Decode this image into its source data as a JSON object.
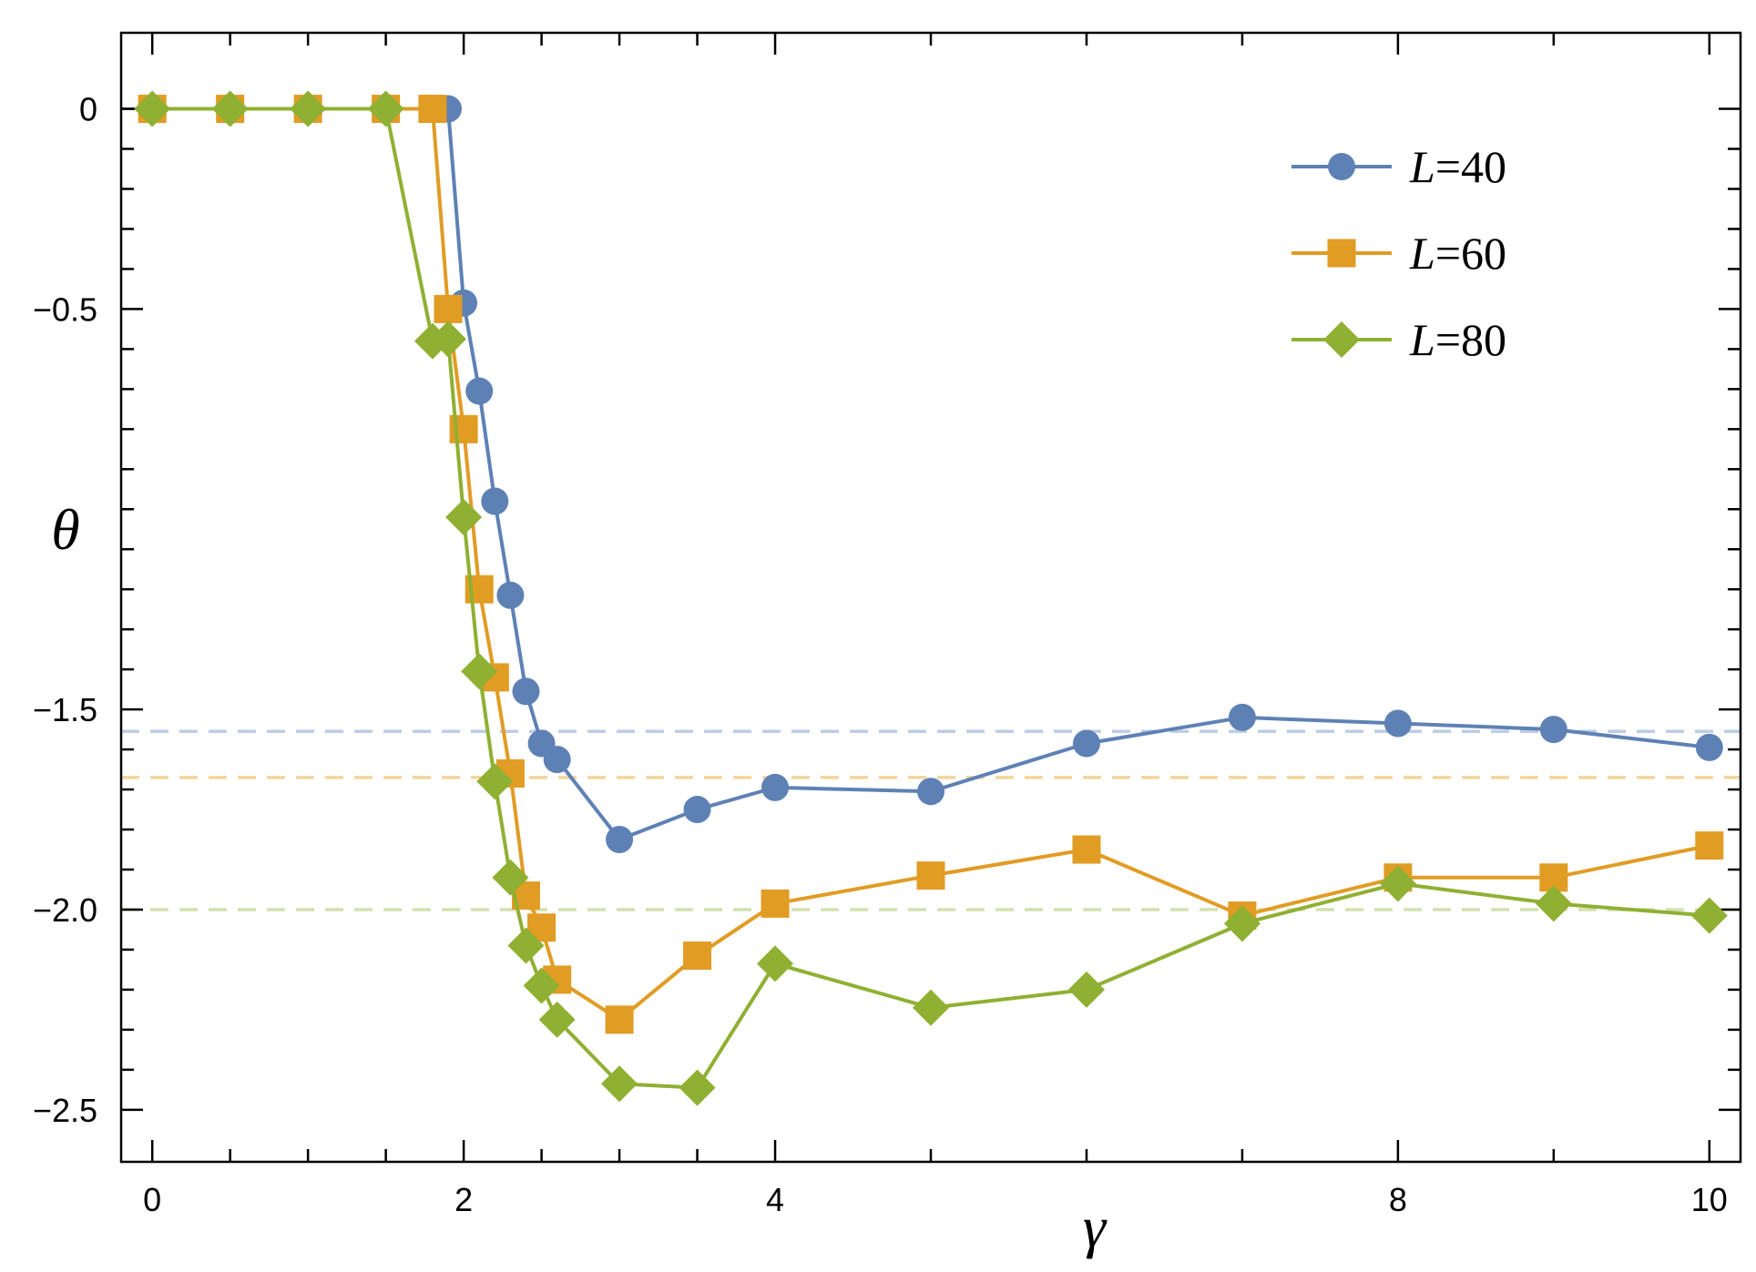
{
  "chart_data": {
    "type": "line",
    "title": "",
    "xlabel": "γ",
    "ylabel": "θ",
    "xlim": [
      -0.2,
      10.2
    ],
    "ylim": [
      -2.63,
      0.19
    ],
    "x_ticks": [
      {
        "value": 0,
        "label": "0"
      },
      {
        "value": 2,
        "label": "2"
      },
      {
        "value": 4,
        "label": "4"
      },
      {
        "value": 8,
        "label": "8"
      },
      {
        "value": 10,
        "label": "10"
      }
    ],
    "x_minor_ticks": [
      0.5,
      1,
      1.5,
      2.5,
      3,
      3.5,
      5,
      6,
      7,
      9
    ],
    "y_ticks": [
      {
        "value": 0,
        "label": "0"
      },
      {
        "value": -0.5,
        "label": "-0.5"
      },
      {
        "value": -1.5,
        "label": "-1.5"
      },
      {
        "value": -2.0,
        "label": "-2.0"
      },
      {
        "value": -2.5,
        "label": "-2.5"
      }
    ],
    "y_minor_ticks": [
      -0.1,
      -0.2,
      -0.3,
      -0.4,
      -0.6,
      -0.7,
      -0.8,
      -0.9,
      -1.0,
      -1.1,
      -1.2,
      -1.3,
      -1.4,
      -1.6,
      -1.7,
      -1.8,
      -1.9,
      -2.1,
      -2.2,
      -2.3,
      -2.4
    ],
    "legend_position": "top-right",
    "series": [
      {
        "name": "L=40",
        "legend_var": "L",
        "legend_value": "=40",
        "color": "#5e81b5",
        "marker": "circle",
        "reference_line": -1.555,
        "reference_color": "#bccde6",
        "x": [
          0,
          0.5,
          1,
          1.5,
          1.9,
          2.0,
          2.1,
          2.2,
          2.3,
          2.4,
          2.5,
          2.6,
          3,
          3.5,
          4,
          5,
          6,
          7,
          8,
          9,
          10
        ],
        "y": [
          0,
          0,
          0,
          0,
          0,
          -0.485,
          -0.705,
          -0.98,
          -1.215,
          -1.455,
          -1.585,
          -1.625,
          -1.825,
          -1.75,
          -1.695,
          -1.705,
          -1.585,
          -1.52,
          -1.535,
          -1.55,
          -1.595
        ]
      },
      {
        "name": "L=60",
        "legend_var": "L",
        "legend_value": "=60",
        "color": "#e19c24",
        "marker": "square",
        "reference_line": -1.67,
        "reference_color": "#f2d59e",
        "x": [
          0,
          0.5,
          1,
          1.5,
          1.8,
          1.9,
          2.0,
          2.1,
          2.2,
          2.3,
          2.4,
          2.5,
          2.6,
          3,
          3.5,
          4,
          5,
          6,
          7,
          8,
          9,
          10
        ],
        "y": [
          0,
          0,
          0,
          0,
          0,
          -0.5,
          -0.8,
          -1.2,
          -1.42,
          -1.66,
          -1.965,
          -2.045,
          -2.175,
          -2.275,
          -2.115,
          -1.985,
          -1.915,
          -1.85,
          -2.015,
          -1.92,
          -1.92,
          -1.84
        ]
      },
      {
        "name": "L=80",
        "legend_var": "L",
        "legend_value": "=80",
        "color": "#8fb032",
        "marker": "diamond",
        "reference_line": -2.0,
        "reference_color": "#d3e1b0",
        "x": [
          0,
          0.5,
          1,
          1.5,
          1.8,
          1.9,
          2.0,
          2.1,
          2.2,
          2.3,
          2.4,
          2.5,
          2.6,
          3,
          3.5,
          4,
          5,
          6,
          7,
          8,
          9,
          10
        ],
        "y": [
          0,
          0,
          0,
          0,
          -0.58,
          -0.575,
          -1.02,
          -1.405,
          -1.68,
          -1.92,
          -2.09,
          -2.19,
          -2.275,
          -2.435,
          -2.445,
          -2.135,
          -2.245,
          -2.2,
          -2.035,
          -1.935,
          -1.985,
          -2.015
        ]
      }
    ]
  }
}
